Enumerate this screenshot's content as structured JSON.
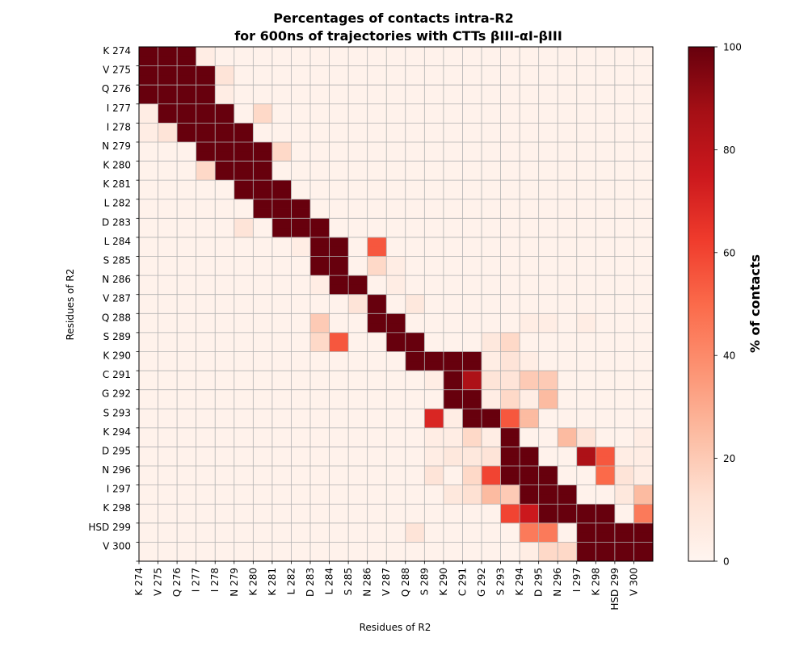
{
  "chart_data": {
    "type": "heatmap",
    "title_line1": "Percentages of contacts intra-R2",
    "title_line2": "for 600ns of trajectories with CTTs βIII-αI-βIII",
    "xlabel": "Residues of R2",
    "ylabel": "Residues of R2",
    "colorbar_label": "% of contacts",
    "colorbar_range": [
      0,
      100
    ],
    "colorbar_ticks": [
      "0",
      "20",
      "40",
      "60",
      "80",
      "100"
    ],
    "colormap": "Reds",
    "grid": true,
    "residues": [
      "K 274",
      "V 275",
      "Q 276",
      "I 277",
      "I 278",
      "N 279",
      "K 280",
      "K 281",
      "L 282",
      "D 283",
      "L 284",
      "S 285",
      "N 286",
      "V 287",
      "Q 288",
      "S 289",
      "K 290",
      "C 291",
      "G 292",
      "S 293",
      "K 294",
      "D 295",
      "N 296",
      "I 297",
      "K 298",
      "HSD 299",
      "V 300"
    ],
    "y_tick_labels": [
      "K 274",
      "V 275",
      "Q 276",
      "I 277",
      "I 278",
      "N 279",
      "K 280",
      "K 281",
      "L 282",
      "D 283",
      "L 284",
      "S 285",
      "N 286",
      "V 287",
      "Q 288",
      "S 289",
      "K 290",
      "C 291",
      "G 292",
      "S 293",
      "K 294",
      "D 295",
      "N 296",
      "I 297",
      "K 298",
      "HSD 299",
      "V 300"
    ],
    "x_tick_labels": [
      "K 274",
      "V 275",
      "Q 276",
      "I 277",
      "I 278",
      "N 279",
      "K 280",
      "K 281",
      "L 282",
      "D 283",
      "L 284",
      "S 285",
      "N 286",
      "V 287",
      "Q 288",
      "S 289",
      "K 290",
      "C 291",
      "G 292",
      "S 293",
      "K 294",
      "D 295",
      "N 296",
      "I 297",
      "K 298",
      "HSD 299",
      "V 300"
    ],
    "grid_rows": 54,
    "grid_cols": 27,
    "band_upper": [
      2,
      2,
      3,
      3,
      4,
      4,
      4,
      4,
      5,
      5,
      6,
      6,
      6,
      6,
      7,
      7,
      8,
      8,
      9,
      9,
      10,
      10,
      10,
      10,
      11,
      11,
      12,
      12,
      13,
      13,
      14,
      14,
      15,
      15,
      16,
      16,
      17,
      17,
      18,
      18,
      19,
      19,
      20,
      20,
      21,
      21,
      22,
      22,
      24,
      24,
      26,
      26,
      26,
      26
    ],
    "band_lower": [
      0,
      0,
      0,
      0,
      0,
      0,
      1,
      1,
      2,
      2,
      3,
      3,
      4,
      4,
      5,
      5,
      6,
      6,
      7,
      7,
      8,
      8,
      9,
      9,
      10,
      10,
      11,
      11,
      12,
      12,
      13,
      13,
      14,
      14,
      15,
      15,
      16,
      16,
      17,
      17,
      17,
      17,
      18,
      18,
      19,
      19,
      20,
      20,
      21,
      21,
      23,
      23,
      23,
      23
    ],
    "special_cells": [
      [
        0,
        3,
        5
      ],
      [
        1,
        3,
        5
      ],
      [
        2,
        4,
        10
      ],
      [
        3,
        4,
        10
      ],
      [
        4,
        4,
        5
      ],
      [
        5,
        4,
        5
      ],
      [
        6,
        0,
        5
      ],
      [
        7,
        0,
        5
      ],
      [
        6,
        6,
        15
      ],
      [
        7,
        6,
        15
      ],
      [
        8,
        0,
        5
      ],
      [
        9,
        0,
        5
      ],
      [
        8,
        1,
        10
      ],
      [
        9,
        1,
        10
      ],
      [
        10,
        7,
        15
      ],
      [
        11,
        7,
        15
      ],
      [
        12,
        3,
        15
      ],
      [
        13,
        3,
        15
      ],
      [
        18,
        5,
        10
      ],
      [
        19,
        5,
        10
      ],
      [
        20,
        8,
        5
      ],
      [
        21,
        8,
        5
      ],
      [
        22,
        12,
        15
      ],
      [
        23,
        12,
        15
      ],
      [
        24,
        13,
        5
      ],
      [
        25,
        13,
        5
      ],
      [
        20,
        12,
        55
      ],
      [
        21,
        12,
        55
      ],
      [
        22,
        13,
        5
      ],
      [
        23,
        13,
        5
      ],
      [
        24,
        9,
        5
      ],
      [
        25,
        9,
        5
      ],
      [
        26,
        11,
        10
      ],
      [
        27,
        11,
        10
      ],
      [
        26,
        14,
        8
      ],
      [
        27,
        14,
        8
      ],
      [
        28,
        9,
        20
      ],
      [
        29,
        9,
        20
      ],
      [
        30,
        9,
        15
      ],
      [
        31,
        9,
        15
      ],
      [
        30,
        10,
        55
      ],
      [
        31,
        10,
        55
      ],
      [
        28,
        23,
        5
      ],
      [
        29,
        23,
        5
      ],
      [
        28,
        20,
        5
      ],
      [
        29,
        20,
        5
      ],
      [
        28,
        21,
        5
      ],
      [
        29,
        21,
        5
      ],
      [
        30,
        18,
        8
      ],
      [
        31,
        18,
        8
      ],
      [
        30,
        19,
        15
      ],
      [
        31,
        19,
        15
      ],
      [
        32,
        18,
        5
      ],
      [
        33,
        18,
        5
      ],
      [
        32,
        19,
        10
      ],
      [
        33,
        19,
        10
      ],
      [
        32,
        20,
        5
      ],
      [
        33,
        20,
        5
      ],
      [
        34,
        15,
        5
      ],
      [
        35,
        15,
        5
      ],
      [
        36,
        18,
        5
      ],
      [
        37,
        18,
        5
      ],
      [
        30,
        18,
        8
      ],
      [
        31,
        18,
        8
      ],
      [
        32,
        16,
        100
      ],
      [
        33,
        16,
        100
      ],
      [
        34,
        17,
        85
      ],
      [
        35,
        17,
        85
      ],
      [
        34,
        18,
        10
      ],
      [
        35,
        18,
        10
      ],
      [
        34,
        19,
        10
      ],
      [
        35,
        19,
        10
      ],
      [
        34,
        20,
        20
      ],
      [
        35,
        20,
        20
      ],
      [
        34,
        21,
        20
      ],
      [
        35,
        21,
        20
      ],
      [
        32,
        17,
        100
      ],
      [
        33,
        17,
        100
      ],
      [
        36,
        19,
        15
      ],
      [
        37,
        19,
        15
      ],
      [
        38,
        19,
        55
      ],
      [
        39,
        19,
        55
      ],
      [
        36,
        20,
        5
      ],
      [
        37,
        20,
        5
      ],
      [
        36,
        21,
        25
      ],
      [
        37,
        21,
        25
      ],
      [
        38,
        15,
        70
      ],
      [
        39,
        15,
        70
      ],
      [
        38,
        20,
        25
      ],
      [
        39,
        20,
        25
      ],
      [
        38,
        16,
        5
      ],
      [
        39,
        16,
        5
      ],
      [
        40,
        15,
        5
      ],
      [
        41,
        15,
        5
      ],
      [
        40,
        16,
        5
      ],
      [
        41,
        16,
        5
      ],
      [
        40,
        17,
        15
      ],
      [
        41,
        17,
        15
      ],
      [
        40,
        18,
        5
      ],
      [
        41,
        18,
        5
      ],
      [
        40,
        22,
        25
      ],
      [
        41,
        22,
        25
      ],
      [
        40,
        23,
        10
      ],
      [
        41,
        23,
        10
      ],
      [
        40,
        26,
        5
      ],
      [
        41,
        26,
        5
      ],
      [
        42,
        25,
        5
      ],
      [
        43,
        25,
        5
      ],
      [
        42,
        15,
        5
      ],
      [
        43,
        15,
        5
      ],
      [
        42,
        16,
        8
      ],
      [
        43,
        16,
        8
      ],
      [
        42,
        17,
        8
      ],
      [
        43,
        17,
        8
      ],
      [
        42,
        18,
        10
      ],
      [
        43,
        18,
        10
      ],
      [
        42,
        23,
        85
      ],
      [
        43,
        23,
        85
      ],
      [
        42,
        24,
        55
      ],
      [
        43,
        24,
        55
      ],
      [
        42,
        26,
        5
      ],
      [
        43,
        26,
        5
      ],
      [
        44,
        15,
        10
      ],
      [
        45,
        15,
        10
      ],
      [
        44,
        17,
        15
      ],
      [
        45,
        17,
        15
      ],
      [
        44,
        18,
        60
      ],
      [
        45,
        18,
        60
      ],
      [
        44,
        24,
        50
      ],
      [
        45,
        24,
        50
      ],
      [
        44,
        25,
        10
      ],
      [
        45,
        25,
        10
      ],
      [
        44,
        26,
        5
      ],
      [
        45,
        26,
        5
      ],
      [
        46,
        16,
        8
      ],
      [
        47,
        16,
        8
      ],
      [
        46,
        17,
        12
      ],
      [
        47,
        17,
        12
      ],
      [
        46,
        18,
        25
      ],
      [
        47,
        18,
        25
      ],
      [
        46,
        19,
        20
      ],
      [
        47,
        19,
        20
      ],
      [
        46,
        25,
        8
      ],
      [
        47,
        25,
        8
      ],
      [
        46,
        26,
        25
      ],
      [
        47,
        26,
        25
      ],
      [
        48,
        19,
        60
      ],
      [
        49,
        19,
        60
      ],
      [
        48,
        20,
        75
      ],
      [
        49,
        20,
        75
      ],
      [
        48,
        26,
        45
      ],
      [
        49,
        26,
        45
      ],
      [
        50,
        14,
        10
      ],
      [
        51,
        14,
        10
      ],
      [
        50,
        20,
        45
      ],
      [
        51,
        20,
        45
      ],
      [
        50,
        21,
        45
      ],
      [
        51,
        21,
        45
      ],
      [
        52,
        20,
        5
      ],
      [
        53,
        20,
        5
      ],
      [
        52,
        21,
        15
      ],
      [
        53,
        21,
        15
      ],
      [
        52,
        22,
        15
      ],
      [
        53,
        22,
        15
      ],
      [
        54,
        20,
        5
      ],
      [
        55,
        20,
        5
      ],
      [
        54,
        21,
        5
      ],
      [
        55,
        21,
        5
      ],
      [
        54,
        22,
        20
      ],
      [
        55,
        22,
        20
      ],
      [
        54,
        23,
        35
      ],
      [
        55,
        23,
        35
      ]
    ]
  }
}
